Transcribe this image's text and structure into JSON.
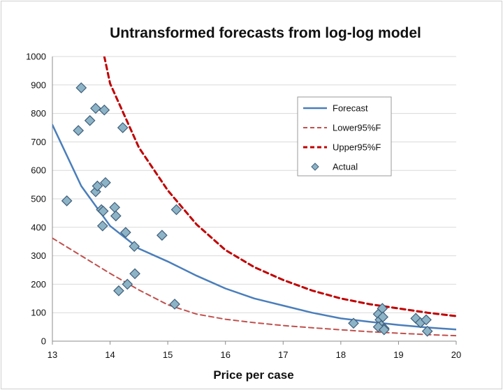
{
  "chart_data": {
    "type": "scatter",
    "title": "Untransformed forecasts from log-log  model",
    "xlabel": "Price per case",
    "ylabel": "",
    "xlim": [
      13,
      20
    ],
    "ylim": [
      0,
      1000
    ],
    "x_ticks": [
      "13",
      "14",
      "15",
      "16",
      "17",
      "18",
      "19",
      "20"
    ],
    "y_ticks": [
      "0",
      "100",
      "200",
      "300",
      "400",
      "500",
      "600",
      "700",
      "800",
      "900",
      "1000"
    ],
    "grid": "horizontal",
    "legend_position": "center-right",
    "series": [
      {
        "name": "Forecast",
        "kind": "line",
        "style": "solid",
        "color": "#4a7ebb",
        "x": [
          13.0,
          13.5,
          14.0,
          14.5,
          15.0,
          15.5,
          16.0,
          16.5,
          17.0,
          17.5,
          18.0,
          18.5,
          19.0,
          19.5,
          20.0
        ],
        "y": [
          760,
          545,
          405,
          325,
          280,
          230,
          185,
          150,
          125,
          100,
          80,
          68,
          57,
          48,
          41
        ]
      },
      {
        "name": "Lower95%F",
        "kind": "line",
        "style": "dashed",
        "color": "#c0504d",
        "x": [
          13.0,
          13.5,
          14.0,
          14.5,
          15.0,
          15.5,
          16.0,
          16.5,
          17.0,
          17.5,
          18.0,
          18.5,
          19.0,
          19.5,
          20.0
        ],
        "y": [
          362,
          300,
          238,
          180,
          128,
          95,
          77,
          65,
          55,
          47,
          40,
          33,
          28,
          23,
          19
        ]
      },
      {
        "name": "Upper95%F",
        "kind": "line",
        "style": "dashed",
        "color": "#c00000",
        "x": [
          13.9,
          14.0,
          14.5,
          15.0,
          15.5,
          16.0,
          16.5,
          17.0,
          17.5,
          18.0,
          18.5,
          19.0,
          19.5,
          20.0
        ],
        "y": [
          1000,
          905,
          680,
          530,
          410,
          320,
          260,
          215,
          178,
          150,
          130,
          115,
          100,
          88
        ]
      },
      {
        "name": "Actual",
        "kind": "scatter",
        "marker": "diamond",
        "color": "#8db3c7",
        "points": [
          [
            13.25,
            493
          ],
          [
            13.45,
            740
          ],
          [
            13.5,
            890
          ],
          [
            13.65,
            775
          ],
          [
            13.75,
            818
          ],
          [
            13.9,
            812
          ],
          [
            13.75,
            525
          ],
          [
            13.78,
            545
          ],
          [
            13.92,
            557
          ],
          [
            13.85,
            462
          ],
          [
            13.88,
            457
          ],
          [
            13.87,
            405
          ],
          [
            14.08,
            470
          ],
          [
            14.1,
            440
          ],
          [
            14.22,
            750
          ],
          [
            14.27,
            382
          ],
          [
            14.42,
            333
          ],
          [
            14.15,
            177
          ],
          [
            14.3,
            200
          ],
          [
            14.43,
            237
          ],
          [
            14.9,
            372
          ],
          [
            15.15,
            462
          ],
          [
            15.12,
            130
          ],
          [
            18.22,
            63
          ],
          [
            18.65,
            95
          ],
          [
            18.72,
            115
          ],
          [
            18.68,
            75
          ],
          [
            18.7,
            55
          ],
          [
            18.75,
            45
          ],
          [
            18.73,
            85
          ],
          [
            18.65,
            50
          ],
          [
            18.75,
            40
          ],
          [
            19.3,
            80
          ],
          [
            19.38,
            65
          ],
          [
            19.48,
            75
          ],
          [
            19.5,
            35
          ]
        ]
      }
    ]
  }
}
